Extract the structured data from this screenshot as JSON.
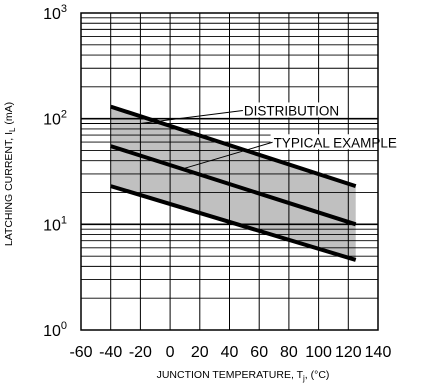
{
  "chart_data": {
    "type": "line",
    "xlabel": "JUNCTION TEMPERATURE, T",
    "xlabel_sub": "j",
    "xlabel_unit": ", (°C)",
    "ylabel": "LATCHING CURRENT, I",
    "ylabel_sub": "L",
    "ylabel_unit": " (mA)",
    "xlim": [
      -60,
      140
    ],
    "ylim": [
      1,
      1000
    ],
    "yscale": "log",
    "grid": true,
    "x_ticks": [
      -60,
      -40,
      -20,
      0,
      20,
      40,
      60,
      80,
      100,
      120,
      140
    ],
    "x_tick_labels": [
      "-60",
      "-40",
      "-20",
      "0",
      "20",
      "40",
      "60",
      "80",
      "100",
      "120",
      "140"
    ],
    "y_ticks": [
      {
        "value": 1,
        "base": "10",
        "exp": "0"
      },
      {
        "value": 10,
        "base": "10",
        "exp": "1"
      },
      {
        "value": 100,
        "base": "10",
        "exp": "2"
      },
      {
        "value": 1000,
        "base": "10",
        "exp": "3"
      }
    ],
    "series": [
      {
        "values": [
          [
            -40,
            130
          ],
          [
            125,
            23
          ]
        ]
      },
      {
        "values": [
          [
            -40,
            55
          ],
          [
            125,
            10
          ]
        ]
      },
      {
        "values": [
          [
            -40,
            23
          ],
          [
            125,
            4.6
          ]
        ]
      }
    ],
    "band": {
      "upper": [
        [
          -40,
          130
        ],
        [
          125,
          23
        ]
      ],
      "lower": [
        [
          -40,
          23
        ],
        [
          125,
          4.6
        ]
      ],
      "fill": "#c0c0c0"
    },
    "annotations": [
      {
        "text": "DISTRIBUTION",
        "anchor": [
          49,
          112
        ],
        "target": [
          -20,
          90
        ]
      },
      {
        "text": "TYPICAL EXAMPLE",
        "anchor": [
          69,
          56
        ],
        "target": [
          10,
          34
        ]
      }
    ],
    "line_color": "#000000"
  }
}
